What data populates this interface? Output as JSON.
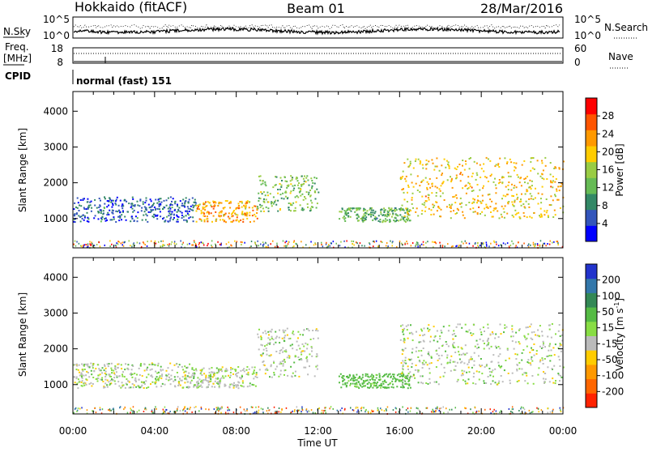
{
  "header": {
    "station": "Hokkaido (fitACF)",
    "beam": "Beam 01",
    "date": "28/Mar/2016"
  },
  "noise_panel": {
    "left_label": "N.Sky",
    "left_ticks": [
      "10^5",
      "10^0"
    ],
    "right_ticks": [
      "10^5",
      "10^0"
    ],
    "right_label": "N.Search"
  },
  "freq_panel": {
    "left_label_1": "Freq.",
    "left_label_2": "[MHz]",
    "left_ticks": [
      "18",
      "8"
    ],
    "right_ticks": [
      "60",
      "0"
    ],
    "right_label": "Nave"
  },
  "cpid_panel": {
    "label": "CPID",
    "mode": "normal (fast) 151"
  },
  "chart_data": [
    {
      "type": "heatmap",
      "name": "power",
      "ylabel": "Slant Range [km]",
      "xlabel": "Time UT",
      "x_range_hours": [
        0,
        24
      ],
      "ylim": [
        180,
        4550
      ],
      "y_ticks": [
        "1000",
        "2000",
        "3000",
        "4000"
      ],
      "colorbar": {
        "label": "Power [dB]",
        "ticks": [
          "4",
          "8",
          "12",
          "16",
          "20",
          "24",
          "28"
        ],
        "range": [
          0,
          32
        ],
        "colors": [
          "#0000ff",
          "#3355bb",
          "#338866",
          "#66bb55",
          "#99cc44",
          "#ffcc00",
          "#ff9900",
          "#ff5500",
          "#ff0000"
        ]
      },
      "features": [
        {
          "t0": 0.0,
          "t1": 6.0,
          "r0": 900,
          "r1": 1600,
          "level": 6
        },
        {
          "t0": 6.0,
          "t1": 9.0,
          "r0": 900,
          "r1": 1500,
          "level": 22
        },
        {
          "t0": 9.0,
          "t1": 12.0,
          "r0": 1200,
          "r1": 2200,
          "level": 14
        },
        {
          "t0": 13.0,
          "t1": 16.5,
          "r0": 900,
          "r1": 1300,
          "level": 12
        },
        {
          "t0": 16.0,
          "t1": 24.0,
          "r0": 1000,
          "r1": 2700,
          "level": 20
        }
      ]
    },
    {
      "type": "heatmap",
      "name": "velocity",
      "ylabel": "Slant Range [km]",
      "xlabel": "Time UT",
      "x_range_hours": [
        0,
        24
      ],
      "ylim": [
        180,
        4550
      ],
      "y_ticks": [
        "1000",
        "2000",
        "3000",
        "4000"
      ],
      "colorbar": {
        "label_main": "Velocity [m s",
        "label_sup": "-1",
        "label_end": "]",
        "ticks": [
          "200",
          "100",
          "50",
          "15",
          "-15",
          "-50",
          "-100",
          "-200"
        ],
        "colors": [
          "#2233cc",
          "#3377aa",
          "#338855",
          "#55bb44",
          "#88dd44",
          "#bbbbbb",
          "#ffcc00",
          "#ff9900",
          "#ff6600",
          "#ff2200"
        ]
      },
      "features": [
        {
          "t0": 0.0,
          "t1": 6.0,
          "r0": 900,
          "r1": 1600,
          "level": 0
        },
        {
          "t0": 6.0,
          "t1": 9.0,
          "r0": 900,
          "r1": 1500,
          "level": 0
        },
        {
          "t0": 9.0,
          "t1": 12.0,
          "r0": 1200,
          "r1": 2600,
          "level": 0
        },
        {
          "t0": 13.0,
          "t1": 16.5,
          "r0": 900,
          "r1": 1300,
          "level": 30
        },
        {
          "t0": 16.0,
          "t1": 24.0,
          "r0": 1000,
          "r1": 2700,
          "level": 0
        }
      ]
    }
  ],
  "x_axis": {
    "label": "Time UT",
    "ticks": [
      "00:00",
      "04:00",
      "08:00",
      "12:00",
      "16:00",
      "20:00",
      "00:00"
    ]
  }
}
